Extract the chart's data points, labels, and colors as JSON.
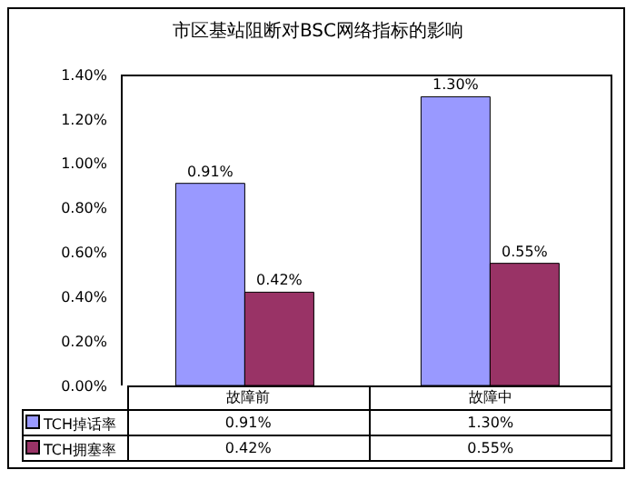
{
  "chart_data": {
    "type": "bar",
    "title": "市区基站阻断对BSC网络指标的影响",
    "categories": [
      "故障前",
      "故障中"
    ],
    "series": [
      {
        "name": "TCH掉话率",
        "color": "#9999ff",
        "values": [
          0.91,
          1.3
        ],
        "value_labels": [
          "0.91%",
          "1.30%"
        ]
      },
      {
        "name": "TCH拥塞率",
        "color": "#993366",
        "values": [
          0.42,
          0.55
        ],
        "value_labels": [
          "0.42%",
          "0.55%"
        ]
      }
    ],
    "ylim": [
      0,
      1.4
    ],
    "yticks": [
      {
        "value": 0,
        "label": "0.00%"
      },
      {
        "value": 0.2,
        "label": "0.20%"
      },
      {
        "value": 0.4,
        "label": "0.40%"
      },
      {
        "value": 0.6,
        "label": "0.60%"
      },
      {
        "value": 0.8,
        "label": "0.80%"
      },
      {
        "value": 1.0,
        "label": "1.00%"
      },
      {
        "value": 1.2,
        "label": "1.20%"
      },
      {
        "value": 1.4,
        "label": "1.40%"
      }
    ],
    "grid": false,
    "legend": "bottom"
  }
}
